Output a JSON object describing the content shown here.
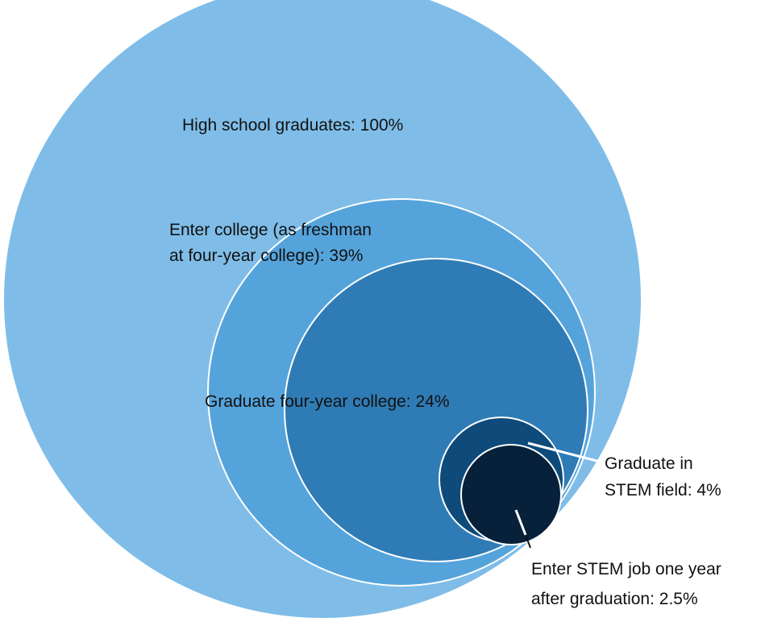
{
  "diagram": {
    "type": "nested-circles",
    "levels": [
      {
        "label_lines": [
          "High school graduates: 100%"
        ],
        "percent": 100,
        "color": "#7fbde8"
      },
      {
        "label_lines": [
          "Enter college (as freshman",
          "at four-year college): 39%"
        ],
        "percent": 39,
        "color": "#55a3db"
      },
      {
        "label_lines": [
          "Graduate four-year college: 24%"
        ],
        "percent": 24,
        "color": "#2f7bb5"
      },
      {
        "label_lines": [
          "Graduate in",
          "STEM field: 4%"
        ],
        "percent": 4,
        "color": "#0e4a7a"
      },
      {
        "label_lines": [
          "Enter STEM job one year",
          "after graduation: 2.5%"
        ],
        "percent": 2.5,
        "color": "#07213a"
      }
    ]
  }
}
